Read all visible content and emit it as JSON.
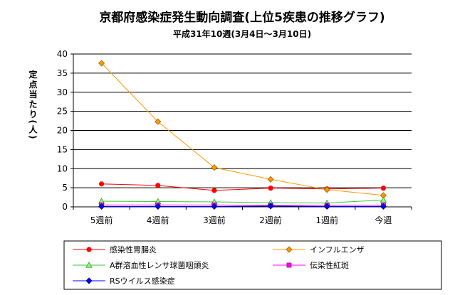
{
  "chart_data": {
    "type": "line",
    "title": "京都府感染症発生動向調査(上位5疾患の推移グラフ)",
    "subtitle": "平成31年10週(3月4日～3月10日)",
    "xlabel": "",
    "ylabel": "定点当たり(人)",
    "categories": [
      "5週前",
      "4週前",
      "3週前",
      "2週前",
      "1週前",
      "今週"
    ],
    "ylim": [
      0,
      40
    ],
    "yticks": [
      0,
      5,
      10,
      15,
      20,
      25,
      30,
      35,
      40
    ],
    "grid": true,
    "legend_position": "bottom",
    "series": [
      {
        "name": "感染性胃腸炎",
        "values": [
          6.0,
          5.6,
          4.3,
          4.9,
          4.7,
          4.9
        ],
        "color": "#ff0000",
        "marker": "circle",
        "marker_color": "#ff0000"
      },
      {
        "name": "インフルエンザ",
        "values": [
          37.6,
          22.3,
          10.3,
          7.2,
          4.5,
          3.0
        ],
        "color": "#ff9900",
        "marker": "diamond",
        "marker_color": "#ff9900"
      },
      {
        "name": "A群溶血性レンサ球菌咽頭炎",
        "values": [
          1.5,
          1.4,
          1.3,
          1.1,
          1.0,
          1.8
        ],
        "color": "#33cc33",
        "marker": "triangle",
        "marker_color": "#99ff66"
      },
      {
        "name": "伝染性紅斑",
        "values": [
          0.5,
          0.5,
          0.5,
          0.4,
          0.4,
          0.4
        ],
        "color": "#ff00ff",
        "marker": "square",
        "marker_color": "#ff00ff"
      },
      {
        "name": "RSウイルス感染症",
        "values": [
          0.1,
          0.1,
          0.1,
          0.2,
          0.1,
          0.1
        ],
        "color": "#0000ff",
        "marker": "diamond",
        "marker_color": "#0000ff"
      }
    ]
  }
}
